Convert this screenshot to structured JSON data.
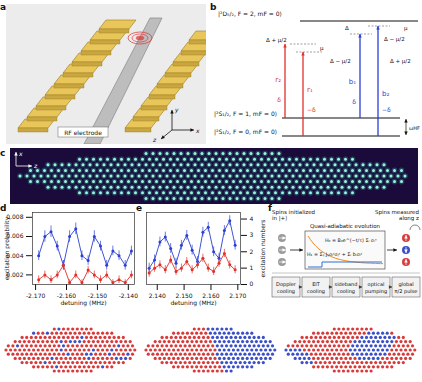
{
  "panel_labels": [
    "a",
    "b",
    "c",
    "d",
    "e",
    "f"
  ],
  "panel_a": {
    "electrode_label": "RF electrode",
    "axes": [
      "x",
      "y",
      "z"
    ]
  },
  "panel_b": {
    "levels": [
      "|²D₅/₂, F = 2, mF = 0⟩",
      "|²S₁/₂, F = 1, mF = 0⟩",
      "|²S₁/₂, F = 0, mF = 0⟩"
    ],
    "splitting": "ωHF",
    "detunings": [
      "μ",
      "Δ − μ/2",
      "Δ + μ/2",
      "μ",
      "Δ",
      "Δ − μ/2",
      "Δ + μ/2"
    ],
    "beams": [
      "r₂",
      "r₁",
      "b₁",
      "b₂"
    ],
    "offsets": [
      "δ",
      "−δ",
      "δ",
      "−δ"
    ]
  },
  "panel_c": {
    "axes": [
      "x",
      "z"
    ]
  },
  "chart_data": [
    {
      "type": "line",
      "marker": "circle",
      "line_style": "solid",
      "xlabel": "detuning (MHz)",
      "ylabel": "excitation probability",
      "x": [
        -2.169,
        -2.167,
        -2.165,
        -2.163,
        -2.161,
        -2.159,
        -2.157,
        -2.155,
        -2.153,
        -2.151,
        -2.149,
        -2.147,
        -2.145,
        -2.143,
        -2.141,
        -2.139
      ],
      "xlim": [
        -2.171,
        -2.138
      ],
      "xticks": [
        {
          "value": -2.17,
          "label": "-2.170"
        },
        {
          "value": -2.16,
          "label": "-2.160"
        },
        {
          "value": -2.15,
          "label": "-2.150"
        },
        {
          "value": -2.14,
          "label": "-2.140"
        }
      ],
      "ylim": [
        0.001,
        0.0085
      ],
      "yticks": [
        0.002,
        0.004,
        0.006,
        0.008
      ],
      "series": [
        {
          "color": "#2b3fd6",
          "values": [
            0.004,
            0.006,
            0.0065,
            0.005,
            0.003,
            0.006,
            0.0068,
            0.004,
            0.0035,
            0.006,
            0.005,
            0.003,
            0.0045,
            0.004,
            0.003,
            0.0045
          ],
          "errors": [
            0.0005,
            0.0006,
            0.0006,
            0.0005,
            0.0005,
            0.0006,
            0.0006,
            0.0005,
            0.0005,
            0.0006,
            0.0005,
            0.0005,
            0.0005,
            0.0005,
            0.0005,
            0.0005
          ]
        },
        {
          "color": "#e0302a",
          "values": [
            0.0015,
            0.002,
            0.0015,
            0.002,
            0.003,
            0.0012,
            0.002,
            0.0012,
            0.0025,
            0.002,
            0.0015,
            0.002,
            0.0012,
            0.0015,
            0.0012,
            0.002
          ],
          "errors": [
            0.0004,
            0.0004,
            0.0004,
            0.0004,
            0.0005,
            0.0003,
            0.0004,
            0.0003,
            0.0004,
            0.0004,
            0.0004,
            0.0004,
            0.0003,
            0.0004,
            0.0003,
            0.0004
          ]
        }
      ]
    },
    {
      "type": "line",
      "marker": "circle",
      "line_style": "solid",
      "xlabel": "detuning (MHz)",
      "y2label": "excitation numbers",
      "x": [
        2.137,
        2.139,
        2.141,
        2.143,
        2.145,
        2.147,
        2.149,
        2.151,
        2.153,
        2.155,
        2.157,
        2.159,
        2.161,
        2.163,
        2.165,
        2.167,
        2.169
      ],
      "xlim": [
        2.136,
        2.171
      ],
      "xticks": [
        {
          "value": 2.14,
          "label": "2.140"
        },
        {
          "value": 2.15,
          "label": "2.150"
        },
        {
          "value": 2.16,
          "label": "2.160"
        },
        {
          "value": 2.17,
          "label": "2.170"
        }
      ],
      "y2lim": [
        0,
        4.4
      ],
      "y2ticks": [
        0,
        1,
        2,
        3,
        4
      ],
      "series": [
        {
          "axis": "y2",
          "color": "#2b3fd6",
          "values": [
            1.0,
            1.5,
            2.6,
            2.9,
            2.2,
            1.3,
            2.4,
            3.0,
            2.1,
            1.4,
            3.2,
            3.5,
            2.0,
            1.6,
            3.3,
            3.9,
            2.4
          ],
          "errors": [
            0.3,
            0.3,
            0.3,
            0.3,
            0.3,
            0.3,
            0.3,
            0.3,
            0.3,
            0.3,
            0.3,
            0.3,
            0.3,
            0.3,
            0.3,
            0.3,
            0.3
          ]
        },
        {
          "axis": "y2",
          "color": "#e0302a",
          "values": [
            0.7,
            1.0,
            1.2,
            0.9,
            1.5,
            0.8,
            1.0,
            1.4,
            0.9,
            1.2,
            1.6,
            1.0,
            0.8,
            1.3,
            1.9,
            1.2,
            0.9
          ],
          "errors": [
            0.25,
            0.25,
            0.25,
            0.25,
            0.25,
            0.25,
            0.25,
            0.25,
            0.25,
            0.25,
            0.25,
            0.25,
            0.25,
            0.25,
            0.25,
            0.25,
            0.25
          ]
        }
      ]
    }
  ],
  "panel_f": {
    "init": [
      "Spins initialized",
      "in |+⟩"
    ],
    "evolution": "Quasi-adiabatic evolution",
    "measure": [
      "Spins measured",
      "along z"
    ],
    "H0": "H₀ = B₀e^(−t/τ) Σᵢ σᵢˣ",
    "H1": "H₁ = Σᵢⱼ Jᵢⱼσᵢᶻσⱼᶻ + Σᵢ bᵢσᵢᶻ",
    "sequence": [
      "Doppler cooling",
      "EIT cooling",
      "sideband cooling",
      "optical pumping",
      "global π/2 pulse"
    ]
  }
}
